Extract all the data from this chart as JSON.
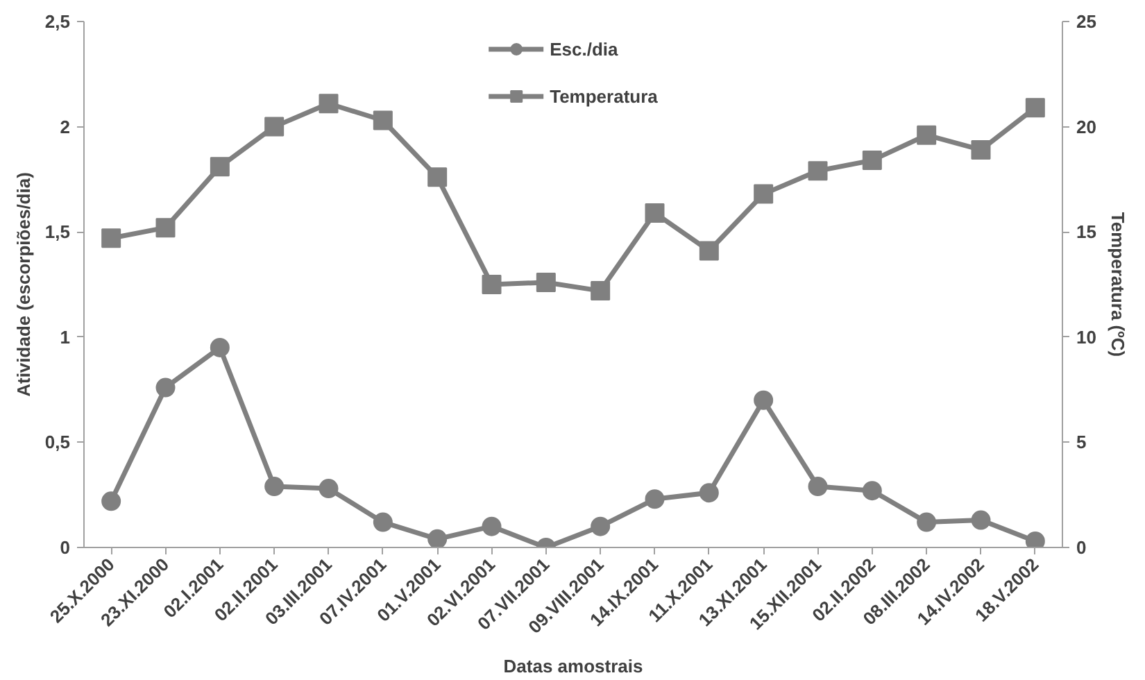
{
  "chart_data": {
    "type": "line",
    "xlabel": "Datas amostrais",
    "ylabel": "Atividade (escorpiões/dia)",
    "y2label": "Temperatura (ºC)",
    "categories": [
      "25.X.2000",
      "23.XI.2000",
      "02.I.2001",
      "02.II.2001",
      "03.III.2001",
      "07.IV.2001",
      "01.V.2001",
      "02.VI.2001",
      "07.VII.2001",
      "09.VIII.2001",
      "14.IX.2001",
      "11.X.2001",
      "13.XI.2001",
      "15.XII.2001",
      "02.II.2002",
      "08.III.2002",
      "14.IV.2002",
      "18.V.2002"
    ],
    "series": [
      {
        "name": "Esc./dia",
        "color": "#808080",
        "marker": "circle",
        "values": [
          0.22,
          0.76,
          0.95,
          0.29,
          0.28,
          0.12,
          0.04,
          0.1,
          0.0,
          0.1,
          0.23,
          0.26,
          0.7,
          0.29,
          0.27,
          0.12,
          0.13,
          0.03
        ]
      },
      {
        "name": "Temperatura",
        "color": "#808080",
        "marker": "square",
        "axis": "y2",
        "values": [
          14.7,
          15.2,
          18.1,
          20.0,
          21.1,
          20.3,
          17.6,
          12.5,
          12.6,
          12.2,
          15.9,
          14.1,
          16.8,
          17.9,
          18.4,
          19.6,
          18.9,
          20.9
        ]
      }
    ],
    "ylim": [
      0,
      2.5
    ],
    "yticks": [
      0,
      {
        "value": 0.5,
        "label": "0,5"
      },
      1,
      {
        "value": 1.5,
        "label": "1,5"
      },
      2,
      {
        "value": 2.5,
        "label": "2,5"
      }
    ],
    "y2lim": [
      0,
      25
    ],
    "y2ticks": [
      0,
      5,
      10,
      15,
      20,
      25
    ],
    "legend": "top",
    "grid": false,
    "line_style": "solid"
  }
}
